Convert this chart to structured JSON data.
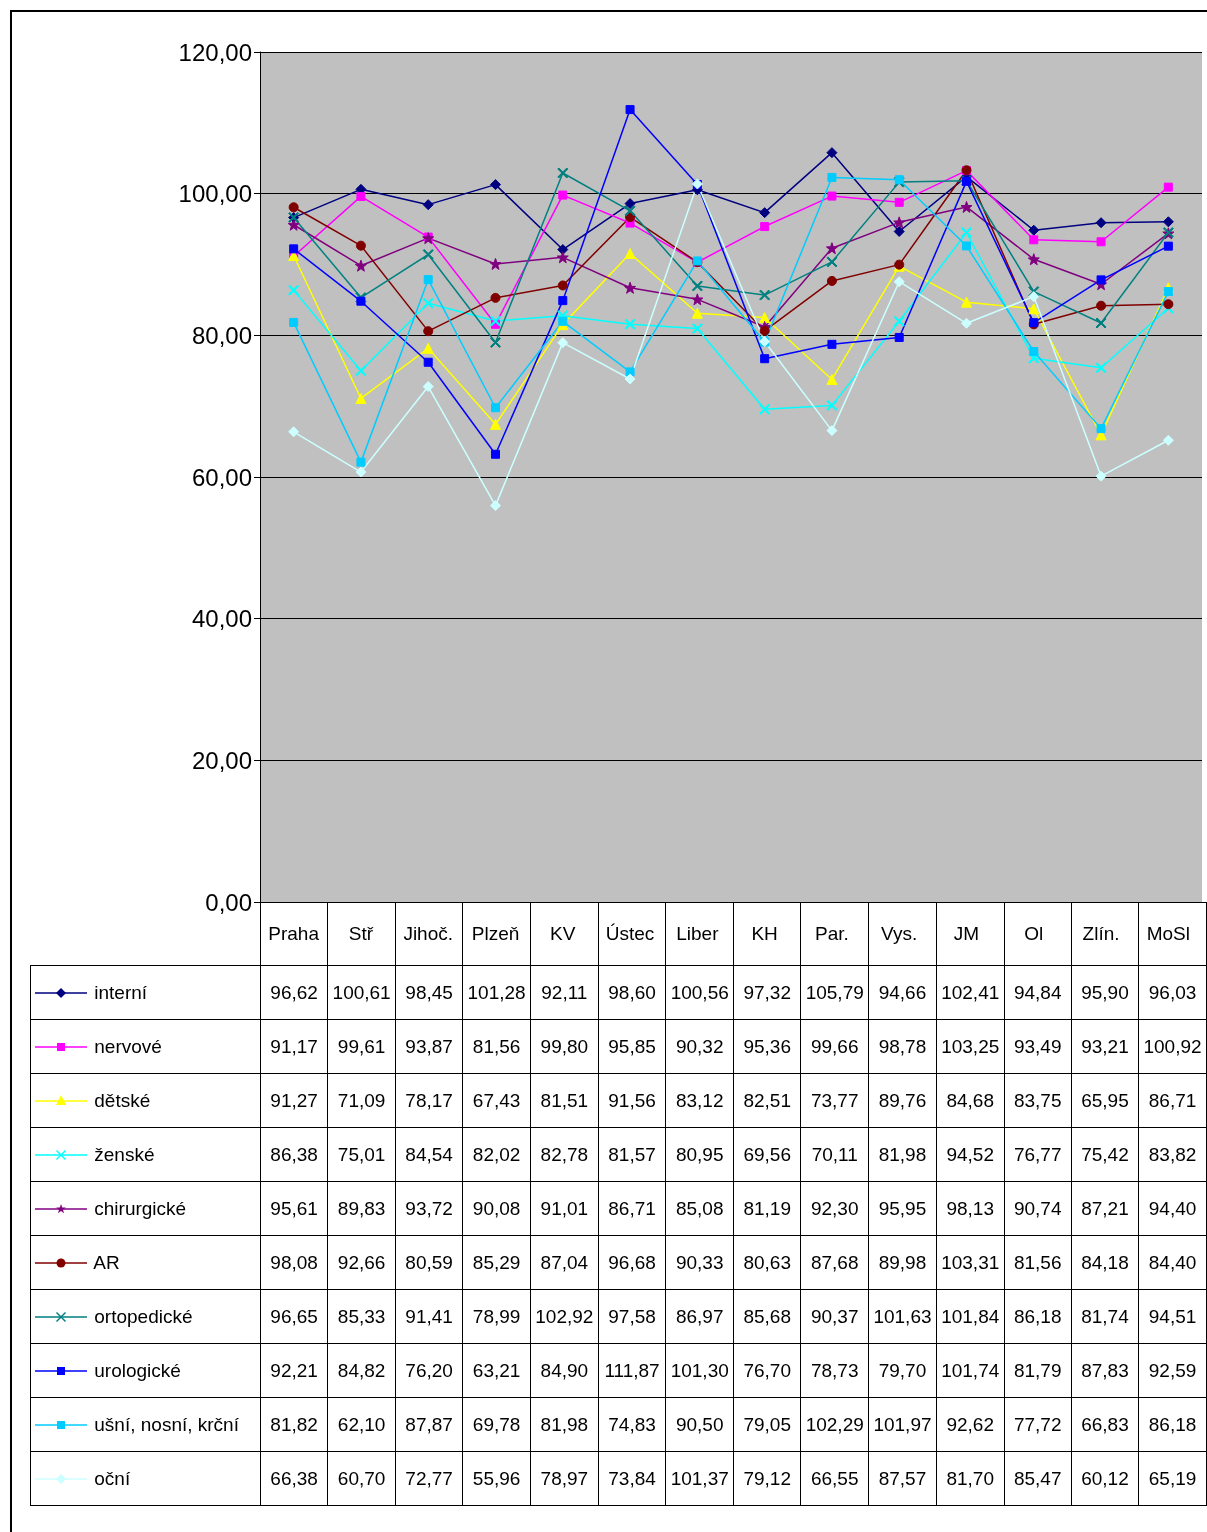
{
  "chart_data": {
    "type": "line",
    "categories": [
      "Praha",
      "Stř",
      "Jihoč.",
      "Plzeň",
      "KV",
      "Ústec",
      "Liber",
      "KH",
      "Par.",
      "Vys.",
      "JM",
      "Ol",
      "Zlín.",
      "MoSl"
    ],
    "ylim": [
      0,
      120
    ],
    "yticks": [
      {
        "value": 0,
        "label": "0,00"
      },
      {
        "value": 20,
        "label": "20,00"
      },
      {
        "value": 40,
        "label": "40,00"
      },
      {
        "value": 60,
        "label": "60,00"
      },
      {
        "value": 80,
        "label": "80,00"
      },
      {
        "value": 100,
        "label": "100,00"
      },
      {
        "value": 120,
        "label": "120,00"
      }
    ],
    "grid": "y",
    "legend": "bottom left",
    "series": [
      {
        "name": "interní",
        "color": "#000080",
        "marker": "diamond",
        "values": [
          96.62,
          100.61,
          98.45,
          101.28,
          92.11,
          98.6,
          100.56,
          97.32,
          105.79,
          94.66,
          102.41,
          94.84,
          95.9,
          96.03
        ],
        "value_labels": [
          "96,62",
          "100,61",
          "98,45",
          "101,28",
          "92,11",
          "98,60",
          "100,56",
          "97,32",
          "105,79",
          "94,66",
          "102,41",
          "94,84",
          "95,90",
          "96,03"
        ]
      },
      {
        "name": "nervové",
        "color": "#ff00ff",
        "marker": "square",
        "values": [
          91.17,
          99.61,
          93.87,
          81.56,
          99.8,
          95.85,
          90.32,
          95.36,
          99.66,
          98.78,
          103.25,
          93.49,
          93.21,
          100.92
        ],
        "value_labels": [
          "91,17",
          "99,61",
          "93,87",
          "81,56",
          "99,80",
          "95,85",
          "90,32",
          "95,36",
          "99,66",
          "98,78",
          "103,25",
          "93,49",
          "93,21",
          "100,92"
        ]
      },
      {
        "name": "dětské",
        "color": "#ffff00",
        "marker": "triangle",
        "values": [
          91.27,
          71.09,
          78.17,
          67.43,
          81.51,
          91.56,
          83.12,
          82.51,
          73.77,
          89.76,
          84.68,
          83.75,
          65.95,
          86.71
        ],
        "value_labels": [
          "91,27",
          "71,09",
          "78,17",
          "67,43",
          "81,51",
          "91,56",
          "83,12",
          "82,51",
          "73,77",
          "89,76",
          "84,68",
          "83,75",
          "65,95",
          "86,71"
        ]
      },
      {
        "name": "ženské",
        "color": "#00ffff",
        "marker": "cross",
        "values": [
          86.38,
          75.01,
          84.54,
          82.02,
          82.78,
          81.57,
          80.95,
          69.56,
          70.11,
          81.98,
          94.52,
          76.77,
          75.42,
          83.82
        ],
        "value_labels": [
          "86,38",
          "75,01",
          "84,54",
          "82,02",
          "82,78",
          "81,57",
          "80,95",
          "69,56",
          "70,11",
          "81,98",
          "94,52",
          "76,77",
          "75,42",
          "83,82"
        ]
      },
      {
        "name": "chirurgické",
        "color": "#800080",
        "marker": "star",
        "values": [
          95.61,
          89.83,
          93.72,
          90.08,
          91.01,
          86.71,
          85.08,
          81.19,
          92.3,
          95.95,
          98.13,
          90.74,
          87.21,
          94.4
        ],
        "value_labels": [
          "95,61",
          "89,83",
          "93,72",
          "90,08",
          "91,01",
          "86,71",
          "85,08",
          "81,19",
          "92,30",
          "95,95",
          "98,13",
          "90,74",
          "87,21",
          "94,40"
        ]
      },
      {
        "name": "AR",
        "color": "#800000",
        "marker": "circle",
        "values": [
          98.08,
          92.66,
          80.59,
          85.29,
          87.04,
          96.68,
          90.33,
          80.63,
          87.68,
          89.98,
          103.31,
          81.56,
          84.18,
          84.4
        ],
        "value_labels": [
          "98,08",
          "92,66",
          "80,59",
          "85,29",
          "87,04",
          "96,68",
          "90,33",
          "80,63",
          "87,68",
          "89,98",
          "103,31",
          "81,56",
          "84,18",
          "84,40"
        ]
      },
      {
        "name": "ortopedické",
        "color": "#008080",
        "marker": "cross",
        "values": [
          96.65,
          85.33,
          91.41,
          78.99,
          102.92,
          97.58,
          86.97,
          85.68,
          90.37,
          101.63,
          101.84,
          86.18,
          81.74,
          94.51
        ],
        "value_labels": [
          "96,65",
          "85,33",
          "91,41",
          "78,99",
          "102,92",
          "97,58",
          "86,97",
          "85,68",
          "90,37",
          "101,63",
          "101,84",
          "86,18",
          "81,74",
          "94,51"
        ]
      },
      {
        "name": "urologické",
        "color": "#0000ff",
        "marker": "square",
        "values": [
          92.21,
          84.82,
          76.2,
          63.21,
          84.9,
          111.87,
          101.3,
          76.7,
          78.73,
          79.7,
          101.74,
          81.79,
          87.83,
          92.59
        ],
        "value_labels": [
          "92,21",
          "84,82",
          "76,20",
          "63,21",
          "84,90",
          "111,87",
          "101,30",
          "76,70",
          "78,73",
          "79,70",
          "101,74",
          "81,79",
          "87,83",
          "92,59"
        ]
      },
      {
        "name": "ušní, nosní, krční",
        "color": "#00ccff",
        "marker": "square",
        "values": [
          81.82,
          62.1,
          87.87,
          69.78,
          81.98,
          74.83,
          90.5,
          79.05,
          102.29,
          101.97,
          92.62,
          77.72,
          66.83,
          86.18
        ],
        "value_labels": [
          "81,82",
          "62,10",
          "87,87",
          "69,78",
          "81,98",
          "74,83",
          "90,50",
          "79,05",
          "102,29",
          "101,97",
          "92,62",
          "77,72",
          "66,83",
          "86,18"
        ]
      },
      {
        "name": "oční",
        "color": "#ccffff",
        "marker": "diamond",
        "values": [
          66.38,
          60.7,
          72.77,
          55.96,
          78.97,
          73.84,
          101.37,
          79.12,
          66.55,
          87.57,
          81.7,
          85.47,
          60.12,
          65.19
        ],
        "value_labels": [
          "66,38",
          "60,70",
          "72,77",
          "55,96",
          "78,97",
          "73,84",
          "101,37",
          "79,12",
          "66,55",
          "87,57",
          "81,70",
          "85,47",
          "60,12",
          "65,19"
        ]
      }
    ]
  }
}
